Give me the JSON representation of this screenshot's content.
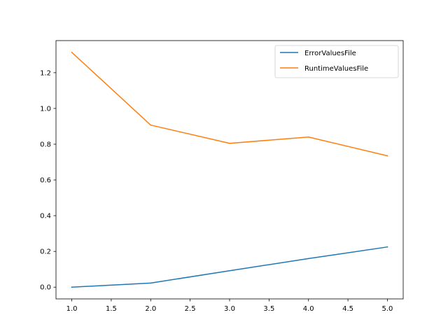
{
  "chart_data": {
    "type": "line",
    "title": "",
    "xlabel": "",
    "ylabel": "",
    "xlim": [
      0.8,
      5.2
    ],
    "ylim": [
      -0.0657,
      1.3797
    ],
    "x_ticks": [
      1.0,
      1.5,
      2.0,
      2.5,
      3.0,
      3.5,
      4.0,
      4.5,
      5.0
    ],
    "x_tick_labels": [
      "1.0",
      "1.5",
      "2.0",
      "2.5",
      "3.0",
      "3.5",
      "4.0",
      "4.5",
      "5.0"
    ],
    "y_ticks": [
      0.0,
      0.2,
      0.4,
      0.6,
      0.8,
      1.0,
      1.2
    ],
    "y_tick_labels": [
      "0.0",
      "0.2",
      "0.4",
      "0.6",
      "0.8",
      "1.0",
      "1.2"
    ],
    "grid": false,
    "legend_position": "upper-right",
    "series": [
      {
        "name": "ErrorValuesFile",
        "color": "#1f77b4",
        "x": [
          1,
          2,
          3,
          4,
          5
        ],
        "y": [
          0.0,
          0.023,
          0.092,
          0.16,
          0.225
        ]
      },
      {
        "name": "RuntimeValuesFile",
        "color": "#ff7f0e",
        "x": [
          1,
          2,
          3,
          4,
          5
        ],
        "y": [
          1.314,
          0.907,
          0.805,
          0.84,
          0.735
        ]
      }
    ]
  }
}
